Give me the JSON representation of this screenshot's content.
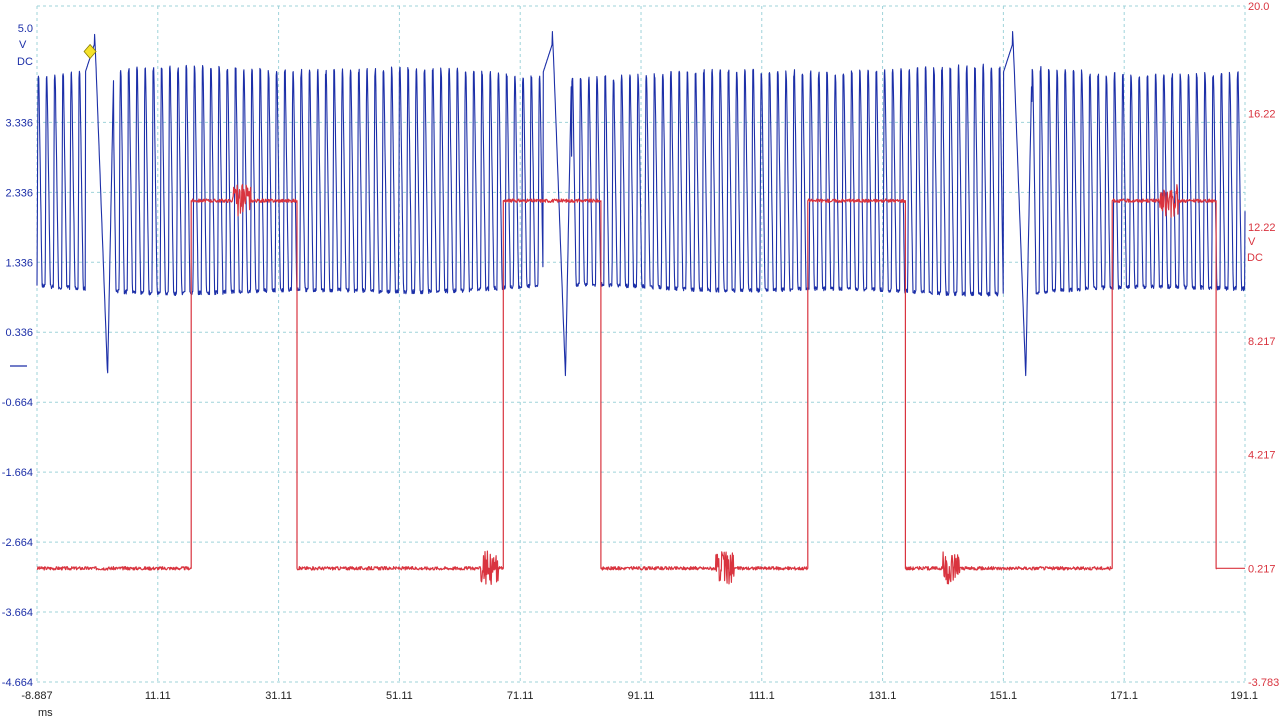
{
  "chart_data": {
    "type": "line",
    "title": "",
    "grid": true,
    "x_axis": {
      "unit": "ms",
      "range": [
        -8.887,
        191.1
      ],
      "ticks": [
        "-8.887",
        "11.11",
        "31.11",
        "51.11",
        "71.11",
        "91.11",
        "111.1",
        "131.1",
        "151.1",
        "171.1",
        "191.1"
      ]
    },
    "y_left": {
      "range": [
        -4.664,
        5.0
      ],
      "ticks": [
        "5.0",
        "3.336",
        "2.336",
        "1.336",
        "0.336",
        "-0.664",
        "-1.664",
        "-2.664",
        "-3.664",
        "-4.664"
      ],
      "unit_lines": [
        "V",
        "DC"
      ],
      "color": "#1c2fa8"
    },
    "y_right": {
      "range": [
        -3.783,
        20.0
      ],
      "ticks": [
        "20.0",
        "16.22",
        "12.22",
        "8.217",
        "4.217",
        "0.217",
        "-3.783"
      ],
      "unit_lines": [
        "V",
        "DC"
      ],
      "color": "#d9343f"
    },
    "series": [
      {
        "axis": "left",
        "color": "#1c2fa8",
        "kind": "oscillation",
        "x_range": [
          -8.887,
          191.1
        ],
        "carrier_period_ms": 1.36,
        "high_V": 4.05,
        "low_V": 0.95,
        "spike_times_ms": [
          0.6,
          76.4,
          152.6
        ],
        "spike_peak_V": 4.7,
        "dip_V": -0.3,
        "trigger_marker": {
          "time_ms": -0.1,
          "value_V": 4.35,
          "color": "#f5e22a"
        }
      },
      {
        "axis": "right",
        "color": "#d9343f",
        "kind": "square",
        "low_V": 0.217,
        "high_V": 13.15,
        "high_intervals_ms": [
          [
            16.6,
            34.1
          ],
          [
            68.3,
            84.4
          ],
          [
            118.7,
            134.8
          ],
          [
            169.1,
            186.3
          ]
        ],
        "noise_bursts_ms": [
          [
            23.5,
            26.5
          ],
          [
            64.5,
            67.5
          ],
          [
            103.5,
            106.5
          ],
          [
            141.0,
            144.0
          ],
          [
            177.0,
            180.0
          ]
        ]
      }
    ]
  }
}
